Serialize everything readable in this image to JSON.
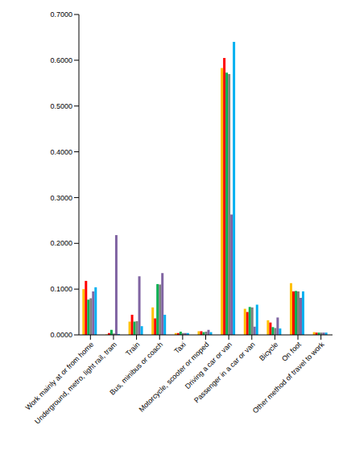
{
  "chart_data": {
    "type": "bar",
    "categories": [
      "Work mainly at or from home",
      "Underground, metro, light rail, tram",
      "Train",
      "Bus, minibus or coach",
      "Taxi",
      "Motorcycle, scooter or moped",
      "Driving a car or van",
      "Passenger in a car or van",
      "Bicycle",
      "On foot",
      "Other method of travel to work"
    ],
    "series": [
      {
        "color": "#FFC000",
        "values": [
          0.1,
          0.001,
          0.029,
          0.06,
          0.004,
          0.008,
          0.583,
          0.057,
          0.032,
          0.113,
          0.006
        ]
      },
      {
        "color": "#FF0000",
        "values": [
          0.118,
          0.004,
          0.044,
          0.036,
          0.004,
          0.008,
          0.605,
          0.05,
          0.027,
          0.095,
          0.005
        ]
      },
      {
        "color": "#00B050",
        "values": [
          0.077,
          0.011,
          0.029,
          0.111,
          0.007,
          0.006,
          0.573,
          0.061,
          0.017,
          0.096,
          0.005
        ]
      },
      {
        "color": "#808080",
        "values": [
          0.08,
          0.003,
          0.03,
          0.11,
          0.004,
          0.007,
          0.57,
          0.06,
          0.015,
          0.095,
          0.005
        ]
      },
      {
        "color": "#8064A2",
        "values": [
          0.095,
          0.218,
          0.128,
          0.135,
          0.004,
          0.011,
          0.263,
          0.018,
          0.038,
          0.081,
          0.005
        ]
      },
      {
        "color": "#00B0F0",
        "values": [
          0.104,
          0.002,
          0.019,
          0.044,
          0.004,
          0.006,
          0.64,
          0.066,
          0.014,
          0.095,
          0.005
        ]
      }
    ],
    "ylim": [
      0,
      0.7
    ],
    "yticks": [
      {
        "value": 0,
        "label": "0.0000"
      },
      {
        "value": 0.1,
        "label": "0.1000"
      },
      {
        "value": 0.2,
        "label": "0.2000"
      },
      {
        "value": 0.3,
        "label": "0.3000"
      },
      {
        "value": 0.4,
        "label": "0.4000"
      },
      {
        "value": 0.5,
        "label": "0.5000"
      },
      {
        "value": 0.6,
        "label": "0.6000"
      },
      {
        "value": 0.7,
        "label": "0.7000"
      }
    ],
    "grid": false
  }
}
